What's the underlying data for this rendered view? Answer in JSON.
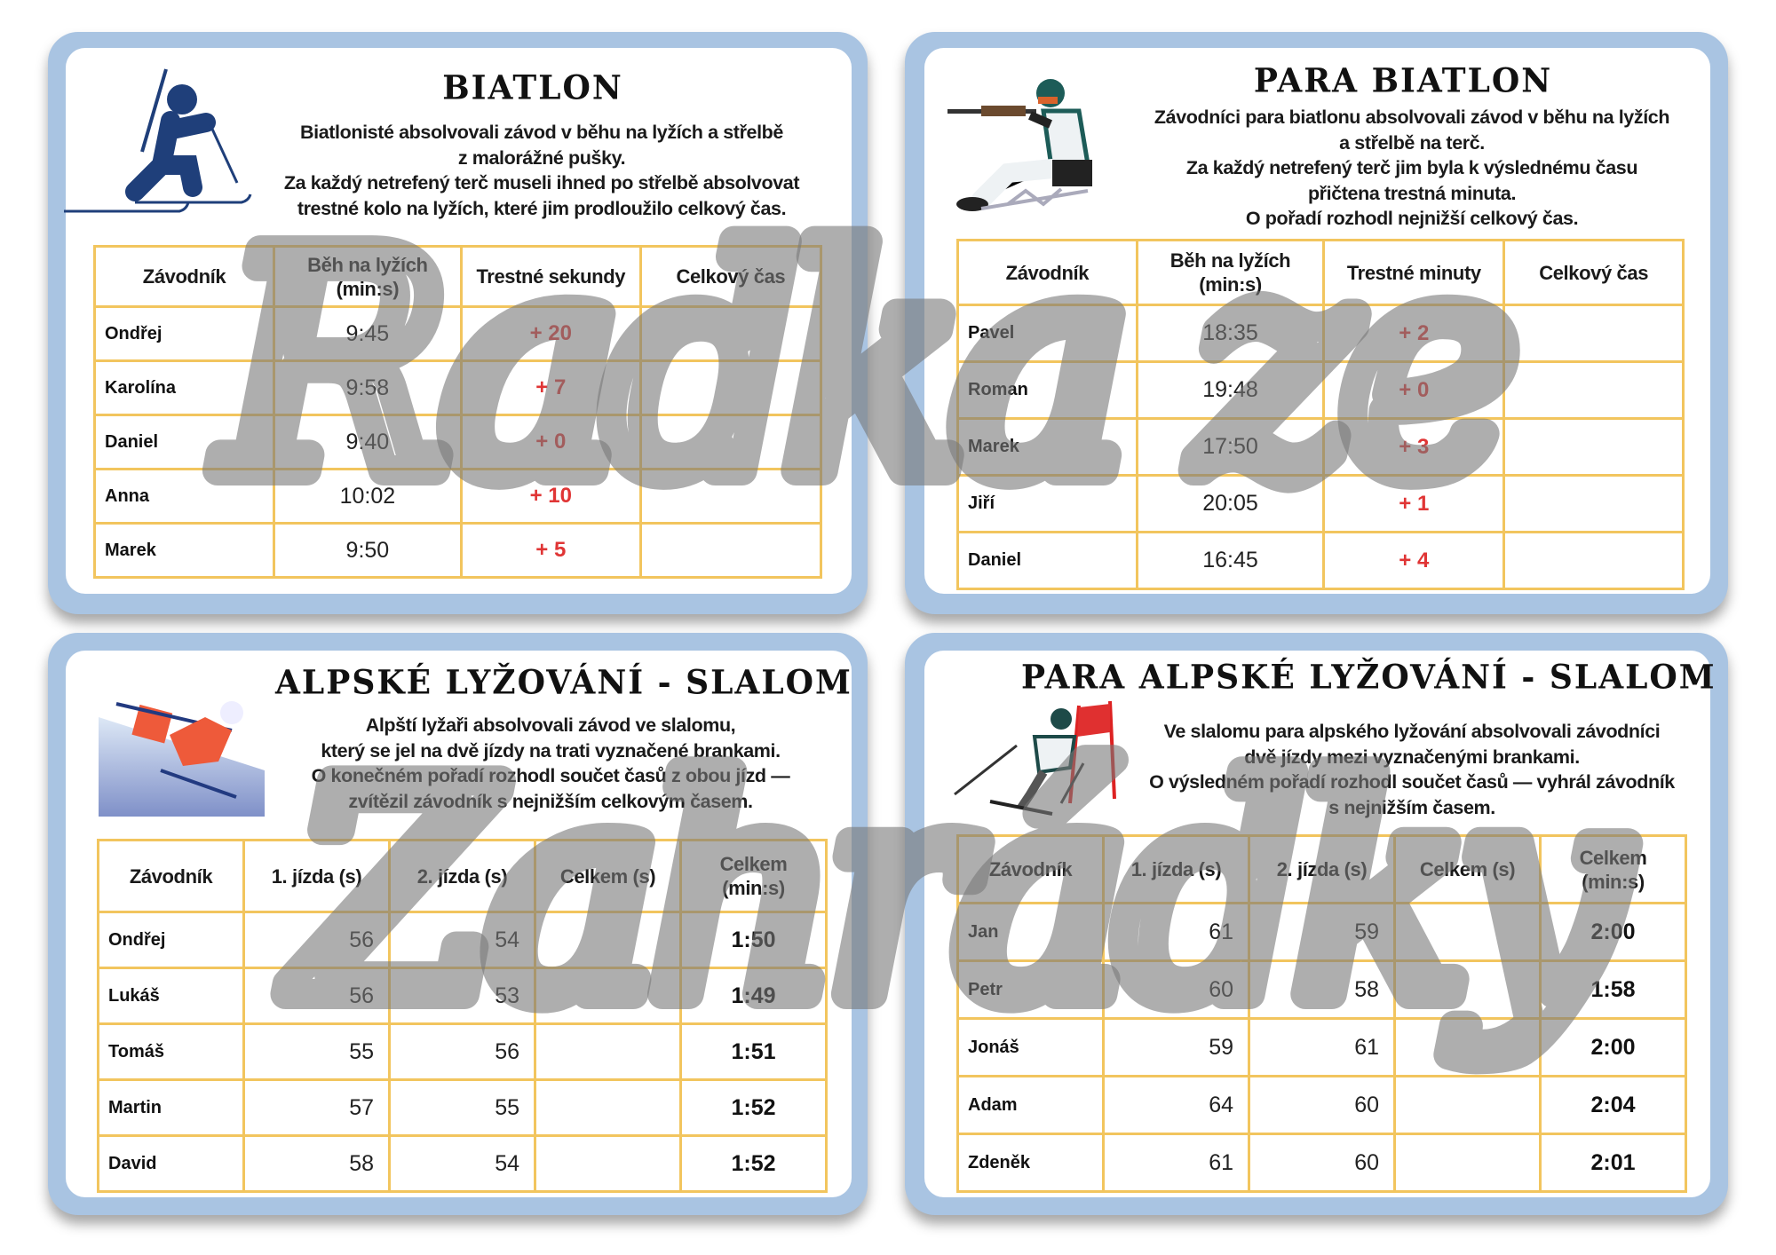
{
  "watermark": {
    "line1": "Radka ze",
    "line2": "Zahrádky"
  },
  "cards": [
    {
      "id": "biatlon",
      "title": "BIATLON",
      "icon": "biathlete-icon",
      "description": [
        "Biatlonisté absolvovali závod v běhu na lyžích a střelbě",
        "z malorážné pušky.",
        "Za každý netrefený terč museli ihned po střelbě absolvovat",
        "trestné kolo na lyžích, které jim prodloužilo celkový čas."
      ],
      "headers": [
        "Závodník",
        "Běh na lyžích (min:s)",
        "Trestné sekundy",
        "Celkový čas"
      ],
      "rows": [
        [
          "Ondřej",
          "9:45",
          "+ 20",
          ""
        ],
        [
          "Karolína",
          "9:58",
          "+ 7",
          ""
        ],
        [
          "Daniel",
          "9:40",
          "+ 0",
          ""
        ],
        [
          "Anna",
          "10:02",
          "+ 10",
          ""
        ],
        [
          "Marek",
          "9:50",
          "+ 5",
          ""
        ]
      ]
    },
    {
      "id": "para-biatlon",
      "title": "PARA BIATLON",
      "icon": "sit-ski-shooter-icon",
      "description": [
        "Závodníci para biatlonu absolvovali závod v běhu na lyžích",
        "a střelbě na terč.",
        "Za každý netrefený terč jim byla k výslednému času",
        "přičtena trestná minuta.",
        "O pořadí rozhodl nejnižší celkový čas."
      ],
      "headers": [
        "Závodník",
        "Běh na lyžích (min:s)",
        "Trestné minuty",
        "Celkový čas"
      ],
      "rows": [
        [
          "Pavel",
          "18:35",
          "+ 2",
          ""
        ],
        [
          "Roman",
          "19:48",
          "+ 0",
          ""
        ],
        [
          "Marek",
          "17:50",
          "+ 3",
          ""
        ],
        [
          "Jiří",
          "20:05",
          "+ 1",
          ""
        ],
        [
          "Daniel",
          "16:45",
          "+ 4",
          ""
        ]
      ]
    },
    {
      "id": "slalom",
      "title": "ALPSKÉ LYŽOVÁNÍ - SLALOM",
      "icon": "slalom-skier-icon",
      "description": [
        "Alpští lyžaři absolvovali závod ve slalomu,",
        "který se jel na dvě jízdy na trati vyznačené brankami.",
        "O konečném pořadí rozhodl součet časů z obou jízd —",
        "zvítězil závodník s nejnižším celkovým časem."
      ],
      "headers": [
        "Závodník",
        "1. jízda (s)",
        "2. jízda (s)",
        "Celkem (s)",
        "Celkem (min:s)"
      ],
      "rows": [
        [
          "Ondřej",
          "56",
          "54",
          "",
          "1:50"
        ],
        [
          "Lukáš",
          "56",
          "53",
          "",
          "1:49"
        ],
        [
          "Tomáš",
          "55",
          "56",
          "",
          "1:51"
        ],
        [
          "Martin",
          "57",
          "55",
          "",
          "1:52"
        ],
        [
          "David",
          "58",
          "54",
          "",
          "1:52"
        ]
      ]
    },
    {
      "id": "para-slalom",
      "title": "PARA ALPSKÉ LYŽOVÁNÍ - SLALOM",
      "icon": "para-skier-gate-icon",
      "description": [
        "Ve slalomu para alpského lyžování absolvovali závodníci",
        "dvě jízdy mezi vyznačenými brankami.",
        "O výsledném pořadí rozhodl součet časů — vyhrál závodník",
        "s nejnižším časem."
      ],
      "headers": [
        "Závodník",
        "1. jízda (s)",
        "2. jízda (s)",
        "Celkem (s)",
        "Celkem (min:s)"
      ],
      "rows": [
        [
          "Jan",
          "61",
          "59",
          "",
          "2:00"
        ],
        [
          "Petr",
          "60",
          "58",
          "",
          "1:58"
        ],
        [
          "Jonáš",
          "59",
          "61",
          "",
          "2:00"
        ],
        [
          "Adam",
          "64",
          "60",
          "",
          "2:04"
        ],
        [
          "Zdeněk",
          "61",
          "60",
          "",
          "2:01"
        ]
      ]
    }
  ],
  "colors": {
    "card_border": "#a9c4e2",
    "table_border": "#f2c55e",
    "penalty": "#e03535",
    "icon_blue": "#1f3f7a"
  }
}
